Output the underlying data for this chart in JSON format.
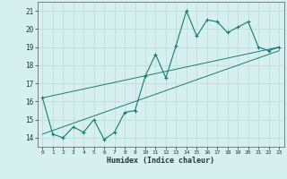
{
  "x_data": [
    0,
    1,
    2,
    3,
    4,
    5,
    6,
    7,
    8,
    9,
    10,
    11,
    12,
    13,
    14,
    15,
    16,
    17,
    18,
    19,
    20,
    21,
    22,
    23
  ],
  "y_data": [
    16.2,
    14.2,
    14.0,
    14.6,
    14.3,
    15.0,
    13.9,
    14.3,
    15.4,
    15.5,
    17.4,
    18.6,
    17.3,
    19.1,
    21.0,
    19.6,
    20.5,
    20.4,
    19.8,
    20.1,
    20.4,
    19.0,
    18.8,
    19.0
  ],
  "trend1_x": [
    0,
    23
  ],
  "trend1_y": [
    16.2,
    19.0
  ],
  "trend2_x": [
    0,
    23
  ],
  "trend2_y": [
    14.2,
    18.8
  ],
  "line_color": "#1a7a6e",
  "bg_color": "#d6f0ef",
  "grid_color": "#c0dedd",
  "xlabel": "Humidex (Indice chaleur)",
  "xlim": [
    -0.5,
    23.5
  ],
  "ylim": [
    13.5,
    21.5
  ],
  "yticks": [
    14,
    15,
    16,
    17,
    18,
    19,
    20,
    21
  ],
  "xticks": [
    0,
    1,
    2,
    3,
    4,
    5,
    6,
    7,
    8,
    9,
    10,
    11,
    12,
    13,
    14,
    15,
    16,
    17,
    18,
    19,
    20,
    21,
    22,
    23
  ]
}
